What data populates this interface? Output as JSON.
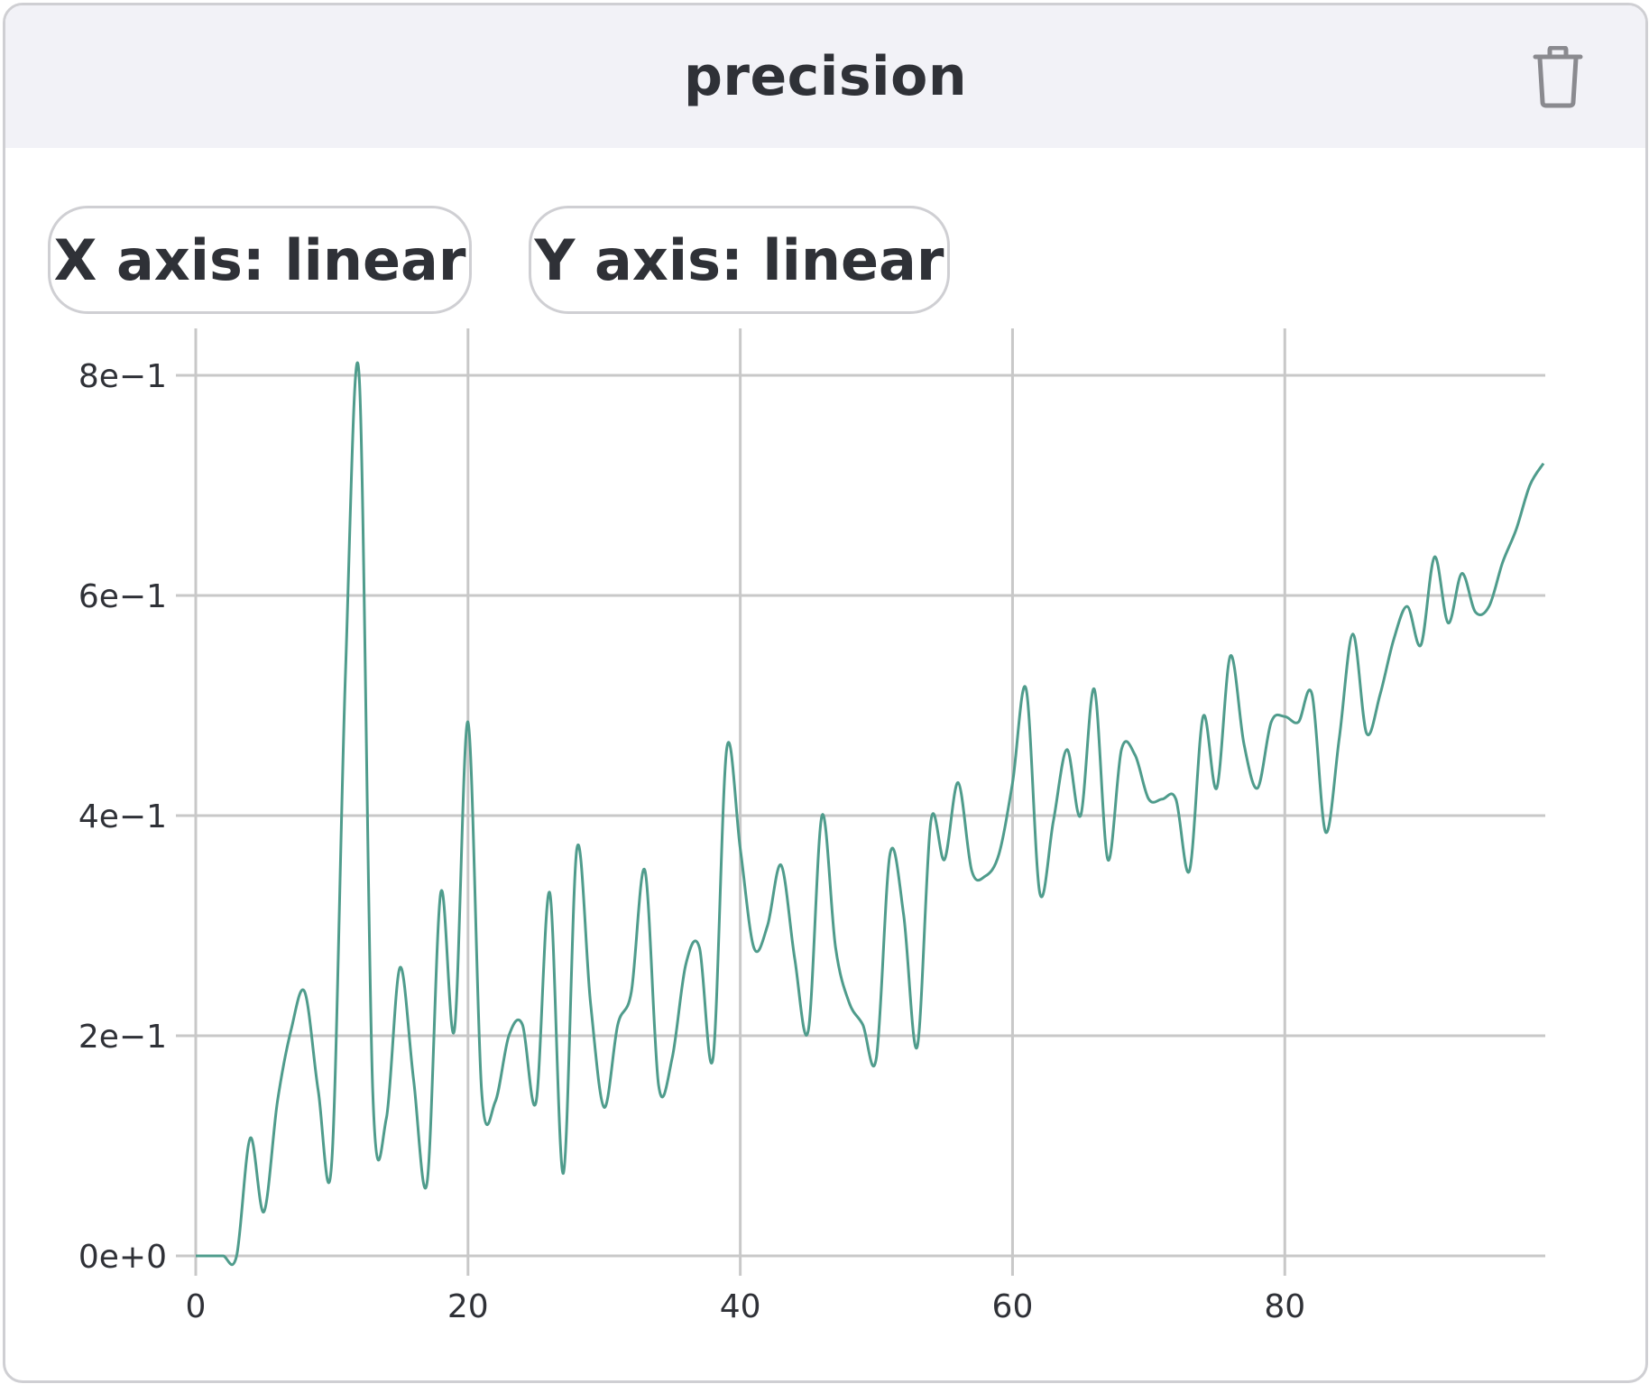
{
  "panel": {
    "title": "precision",
    "delete_icon": "trash-icon"
  },
  "controls": {
    "x_axis_button": "X axis: linear",
    "y_axis_button": "Y axis: linear"
  },
  "colors": {
    "line": "#4f9c8c",
    "grid": "#c8c8c8",
    "header_bg": "#f2f2f7",
    "text": "#2f3137"
  },
  "chart_data": {
    "type": "line",
    "title": "",
    "xlabel": "",
    "ylabel": "",
    "xlim": [
      0,
      99
    ],
    "ylim": [
      0,
      0.8
    ],
    "grid": true,
    "x_ticks": [
      0,
      20,
      40,
      60,
      80
    ],
    "x_tick_labels": [
      "0",
      "20",
      "40",
      "60",
      "80"
    ],
    "y_ticks": [
      0,
      0.2,
      0.4,
      0.6,
      0.8
    ],
    "y_tick_labels": [
      "0e+0",
      "2e−1",
      "4e−1",
      "6e−1",
      "8e−1"
    ],
    "series": [
      {
        "name": "",
        "x": [
          0,
          1,
          2,
          3,
          4,
          5,
          6,
          7,
          8,
          9,
          10,
          11,
          12,
          13,
          14,
          15,
          16,
          17,
          18,
          19,
          20,
          21,
          22,
          23,
          24,
          25,
          26,
          27,
          28,
          29,
          30,
          31,
          32,
          33,
          34,
          35,
          36,
          37,
          38,
          39,
          40,
          41,
          42,
          43,
          44,
          45,
          46,
          47,
          48,
          49,
          50,
          51,
          52,
          53,
          54,
          55,
          56,
          57,
          58,
          59,
          60,
          61,
          62,
          63,
          64,
          65,
          66,
          67,
          68,
          69,
          70,
          71,
          72,
          73,
          74,
          75,
          76,
          77,
          78,
          79,
          80,
          81,
          82,
          83,
          84,
          85,
          86,
          87,
          88,
          89,
          90,
          91,
          92,
          93,
          94,
          95,
          96,
          97,
          98,
          99
        ],
        "y": [
          0,
          0,
          0,
          0,
          0.107,
          0.04,
          0.14,
          0.205,
          0.24,
          0.15,
          0.087,
          0.53,
          0.8,
          0.15,
          0.125,
          0.262,
          0.16,
          0.067,
          0.33,
          0.205,
          0.485,
          0.15,
          0.14,
          0.2,
          0.21,
          0.14,
          0.33,
          0.075,
          0.37,
          0.23,
          0.135,
          0.21,
          0.24,
          0.35,
          0.155,
          0.18,
          0.265,
          0.28,
          0.18,
          0.46,
          0.37,
          0.28,
          0.3,
          0.355,
          0.27,
          0.205,
          0.4,
          0.28,
          0.23,
          0.21,
          0.18,
          0.365,
          0.31,
          0.19,
          0.395,
          0.36,
          0.43,
          0.35,
          0.345,
          0.365,
          0.43,
          0.515,
          0.33,
          0.395,
          0.46,
          0.4,
          0.515,
          0.36,
          0.46,
          0.455,
          0.415,
          0.415,
          0.415,
          0.35,
          0.49,
          0.425,
          0.545,
          0.465,
          0.425,
          0.485,
          0.49,
          0.485,
          0.51,
          0.385,
          0.47,
          0.565,
          0.475,
          0.51,
          0.56,
          0.59,
          0.555,
          0.635,
          0.575,
          0.62,
          0.585,
          0.59,
          0.63,
          0.66,
          0.7,
          0.72
        ]
      }
    ]
  }
}
